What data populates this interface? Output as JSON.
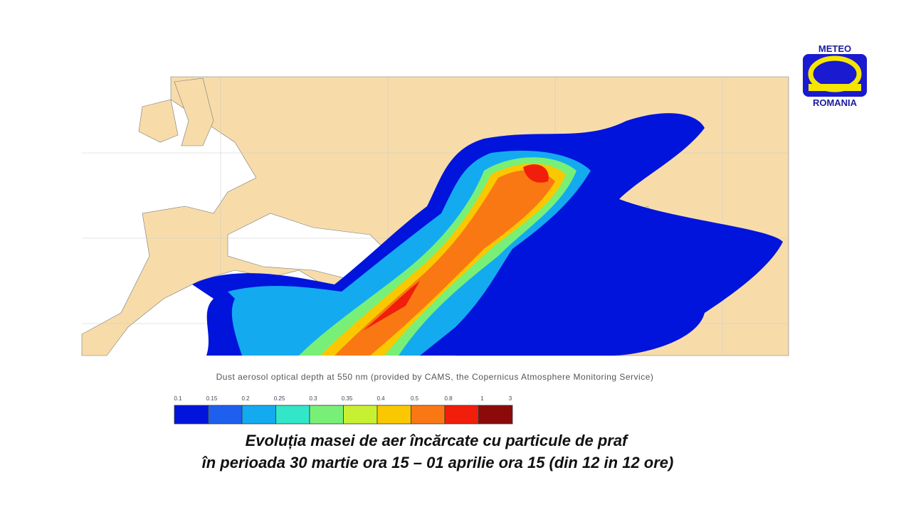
{
  "logo": {
    "top": "METEO",
    "bottom": "ROMANIA"
  },
  "map": {
    "caption": "Dust aerosol optical depth at 550 nm (provided by CAMS, the Copernicus Atmosphere Monitoring Service)"
  },
  "legend": {
    "ticks": [
      0.1,
      0.15,
      0.2,
      0.25,
      0.3,
      0.35,
      0.4,
      0.5,
      0.8,
      1,
      3
    ],
    "colors": [
      "#0014dc",
      "#1e5ff0",
      "#14aaf0",
      "#32e6c8",
      "#78f078",
      "#c8f032",
      "#fac800",
      "#fa7814",
      "#f01e0a",
      "#8c0a0a"
    ]
  },
  "title": {
    "line1": "Evoluția masei de aer încărcate cu particule de praf",
    "line2": "în perioada 30 martie ora 15 – 01 aprilie ora 15 (din 12 in 12 ore)"
  }
}
